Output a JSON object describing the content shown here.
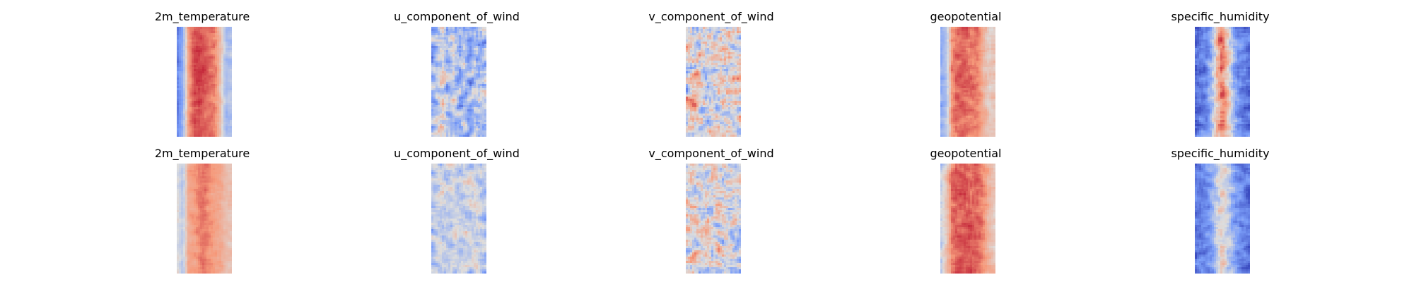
{
  "chart_data": [
    {
      "type": "heatmap",
      "title": "2m_temperature",
      "row": 1,
      "description_values": "warm (red) central band, cool (blue) left edge, light blue right edge",
      "colormap": "coolwarm",
      "profile": [
        0.18,
        0.32,
        0.72,
        0.86,
        0.88,
        0.86,
        0.82,
        0.78,
        0.62,
        0.38,
        0.4
      ],
      "noise": 0.06,
      "seed": 11
    },
    {
      "type": "heatmap",
      "title": "u_component_of_wind",
      "row": 1,
      "colormap": "coolwarm",
      "profile": [
        0.3,
        0.42,
        0.5,
        0.36,
        0.45,
        0.32,
        0.4,
        0.3,
        0.42,
        0.32,
        0.36
      ],
      "noise": 0.2,
      "seed": 23
    },
    {
      "type": "heatmap",
      "title": "v_component_of_wind",
      "row": 1,
      "colormap": "coolwarm",
      "profile": [
        0.5,
        0.52,
        0.55,
        0.5,
        0.48,
        0.52,
        0.55,
        0.5,
        0.48,
        0.52,
        0.5
      ],
      "noise": 0.26,
      "seed": 37
    },
    {
      "type": "heatmap",
      "title": "geopotential",
      "row": 1,
      "colormap": "coolwarm",
      "profile": [
        0.3,
        0.4,
        0.76,
        0.84,
        0.84,
        0.82,
        0.8,
        0.78,
        0.66,
        0.56,
        0.6
      ],
      "noise": 0.07,
      "seed": 41
    },
    {
      "type": "heatmap",
      "title": "specific_humidity",
      "row": 1,
      "colormap": "coolwarm",
      "profile": [
        0.1,
        0.14,
        0.2,
        0.38,
        0.62,
        0.82,
        0.62,
        0.38,
        0.2,
        0.14,
        0.1
      ],
      "noise": 0.14,
      "seed": 53
    },
    {
      "type": "heatmap",
      "title": "2m_temperature",
      "row": 2,
      "colormap": "coolwarm",
      "profile": [
        0.5,
        0.4,
        0.7,
        0.74,
        0.78,
        0.8,
        0.76,
        0.72,
        0.7,
        0.62,
        0.6
      ],
      "noise": 0.05,
      "seed": 61
    },
    {
      "type": "heatmap",
      "title": "u_component_of_wind",
      "row": 2,
      "colormap": "coolwarm",
      "profile": [
        0.4,
        0.44,
        0.46,
        0.42,
        0.48,
        0.44,
        0.46,
        0.44,
        0.46,
        0.44,
        0.42
      ],
      "noise": 0.14,
      "seed": 73
    },
    {
      "type": "heatmap",
      "title": "v_component_of_wind",
      "row": 2,
      "colormap": "coolwarm",
      "profile": [
        0.5,
        0.52,
        0.5,
        0.48,
        0.52,
        0.5,
        0.52,
        0.5,
        0.48,
        0.5,
        0.5
      ],
      "noise": 0.24,
      "seed": 89
    },
    {
      "type": "heatmap",
      "title": "geopotential",
      "row": 2,
      "colormap": "coolwarm",
      "profile": [
        0.44,
        0.6,
        0.8,
        0.84,
        0.86,
        0.86,
        0.84,
        0.82,
        0.76,
        0.66,
        0.6
      ],
      "noise": 0.07,
      "seed": 97
    },
    {
      "type": "heatmap",
      "title": "specific_humidity",
      "row": 2,
      "colormap": "coolwarm",
      "profile": [
        0.12,
        0.16,
        0.22,
        0.3,
        0.44,
        0.6,
        0.44,
        0.3,
        0.22,
        0.16,
        0.12
      ],
      "noise": 0.12,
      "seed": 101
    }
  ]
}
